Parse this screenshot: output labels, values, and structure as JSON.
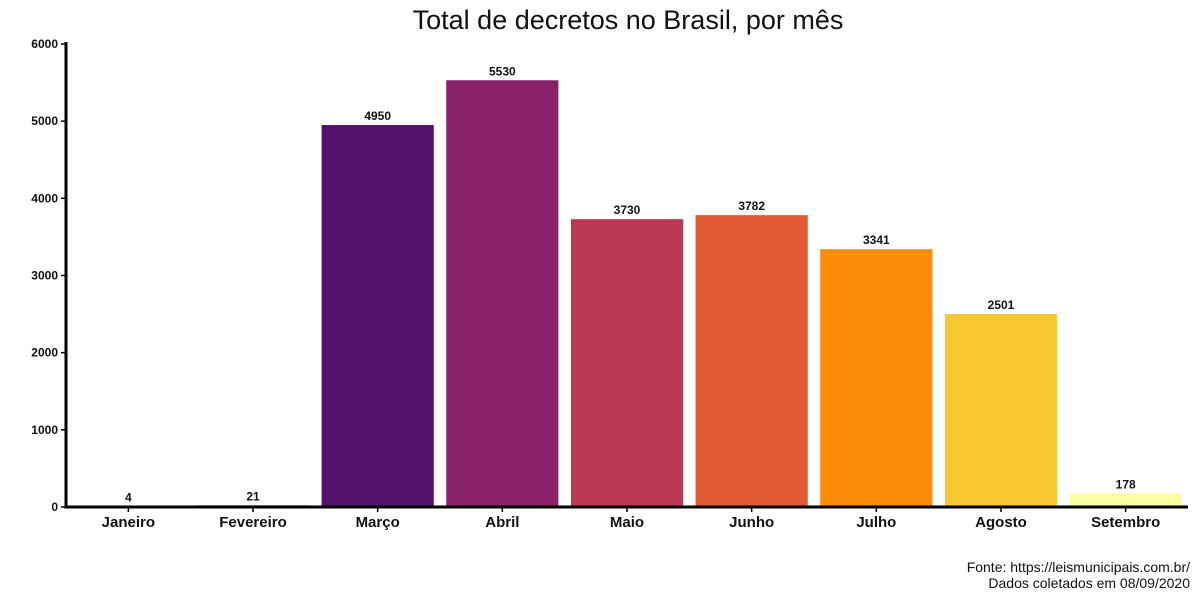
{
  "chart_data": {
    "type": "bar",
    "title": "Total de decretos no Brasil, por mês",
    "xlabel": "",
    "ylabel": "",
    "categories": [
      "Janeiro",
      "Fevereiro",
      "Março",
      "Abril",
      "Maio",
      "Junho",
      "Julho",
      "Agosto",
      "Setembro"
    ],
    "values": [
      4,
      21,
      4950,
      5530,
      3730,
      3782,
      3341,
      2501,
      178
    ],
    "data_labels": [
      "4",
      "21",
      "4950",
      "5530",
      "3730",
      "3782",
      "3341",
      "2501",
      "178"
    ],
    "colors": [
      "#000004",
      "#1b0c41",
      "#56106e",
      "#89226a",
      "#bb3754",
      "#e35933",
      "#f98c0a",
      "#f8c932",
      "#fcffa4"
    ],
    "ylim": [
      0,
      6000
    ],
    "yticks": [
      0,
      1000,
      2000,
      3000,
      4000,
      5000,
      6000
    ],
    "ytick_labels": [
      "0",
      "1000",
      "2000",
      "3000",
      "4000",
      "5000",
      "6000"
    ],
    "grid": false,
    "legend": "none"
  },
  "caption": {
    "line1": "Fonte: https://leismunicipais.com.br/",
    "line2": "Dados coletados em 08/09/2020"
  }
}
